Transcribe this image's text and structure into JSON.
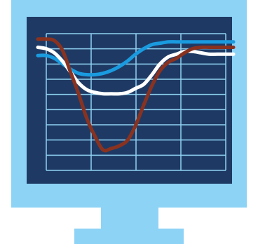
{
  "colors": {
    "background": "#ffffff",
    "monitor_frame": "#8dd3f6",
    "screen": "#1e3a64",
    "grid": "#8fd2f2",
    "stand": "#8dd3f6"
  },
  "chart_data": {
    "type": "line",
    "title": "",
    "xlabel": "",
    "ylabel": "",
    "x": [
      0,
      1,
      2,
      3,
      4,
      5,
      6,
      7,
      8,
      9,
      10,
      11,
      12,
      13,
      14,
      15,
      16,
      17,
      18,
      19,
      20,
      21,
      22,
      23,
      24
    ],
    "xlim": [
      0,
      24
    ],
    "ylim": [
      0,
      10
    ],
    "grid": true,
    "series": [
      {
        "color": "#1a9be0",
        "values": [
          8.4,
          8.4,
          8.2,
          7.8,
          7.4,
          7.1,
          7.0,
          7.0,
          7.1,
          7.3,
          7.6,
          8.0,
          8.5,
          8.9,
          9.2,
          9.3,
          9.4,
          9.4,
          9.4,
          9.4,
          9.4,
          9.4,
          9.4,
          9.4,
          9.4
        ]
      },
      {
        "color": "#ffffff",
        "values": [
          9.0,
          8.9,
          8.6,
          8.0,
          7.2,
          6.4,
          5.9,
          5.7,
          5.6,
          5.6,
          5.6,
          5.7,
          6.0,
          6.3,
          7.0,
          7.8,
          8.3,
          8.5,
          8.7,
          8.7,
          8.6,
          8.5,
          8.5,
          8.5,
          8.5
        ]
      },
      {
        "color": "#8a3220",
        "values": [
          9.6,
          9.6,
          9.5,
          8.8,
          7.2,
          5.6,
          3.8,
          2.5,
          1.5,
          1.6,
          1.8,
          2.2,
          3.3,
          4.8,
          6.2,
          7.3,
          7.9,
          8.2,
          8.6,
          8.9,
          9.0,
          9.0,
          9.0,
          9.0,
          9.0
        ]
      }
    ]
  }
}
